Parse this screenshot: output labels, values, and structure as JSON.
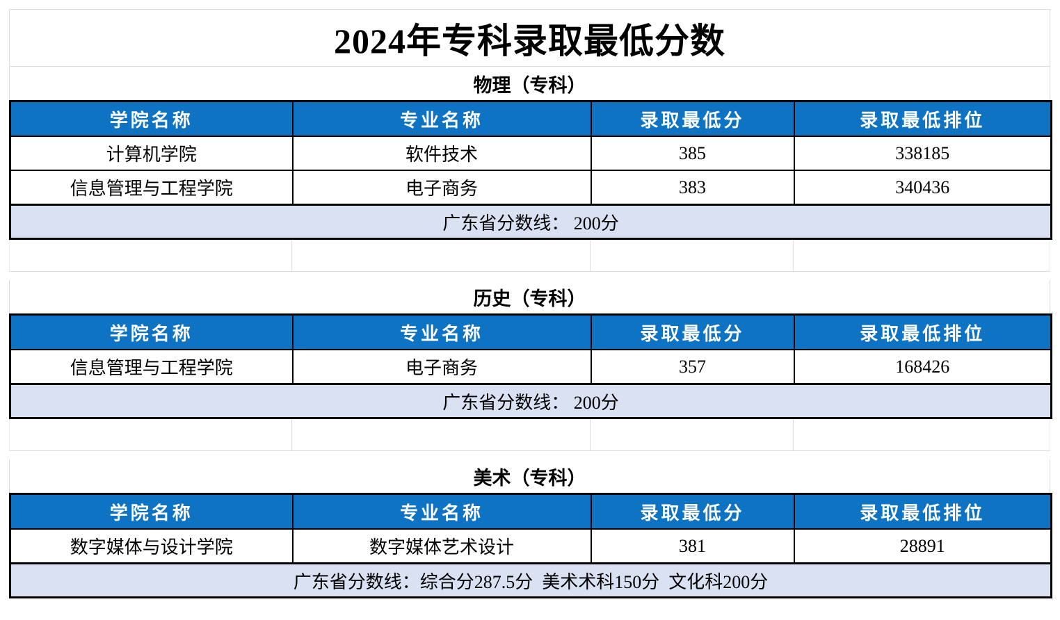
{
  "page": {
    "title": "2024年专科录取最低分数"
  },
  "columns": [
    "学院名称",
    "专业名称",
    "录取最低分",
    "录取最低排位"
  ],
  "sections": [
    {
      "name": "物理（专科）",
      "rows": [
        {
          "college": "计算机学院",
          "major": "软件技术",
          "min_score": "385",
          "min_rank": "338185"
        },
        {
          "college": "信息管理与工程学院",
          "major": "电子商务",
          "min_score": "383",
          "min_rank": "340436"
        }
      ],
      "note": "广东省分数线： 200分"
    },
    {
      "name": "历史（专科）",
      "rows": [
        {
          "college": "信息管理与工程学院",
          "major": "电子商务",
          "min_score": "357",
          "min_rank": "168426"
        }
      ],
      "note": "广东省分数线： 200分"
    },
    {
      "name": "美术（专科）",
      "rows": [
        {
          "college": "数字媒体与设计学院",
          "major": "数字媒体艺术设计",
          "min_score": "381",
          "min_rank": "28891"
        }
      ],
      "note": "广东省分数线：综合分287.5分  美术术科150分  文化科200分"
    }
  ],
  "colors": {
    "header_bg": "#0f73c4",
    "header_text": "#ffffff",
    "note_bg": "#d9e1f2",
    "border": "#000000",
    "gridline": "#dcdcdc"
  }
}
